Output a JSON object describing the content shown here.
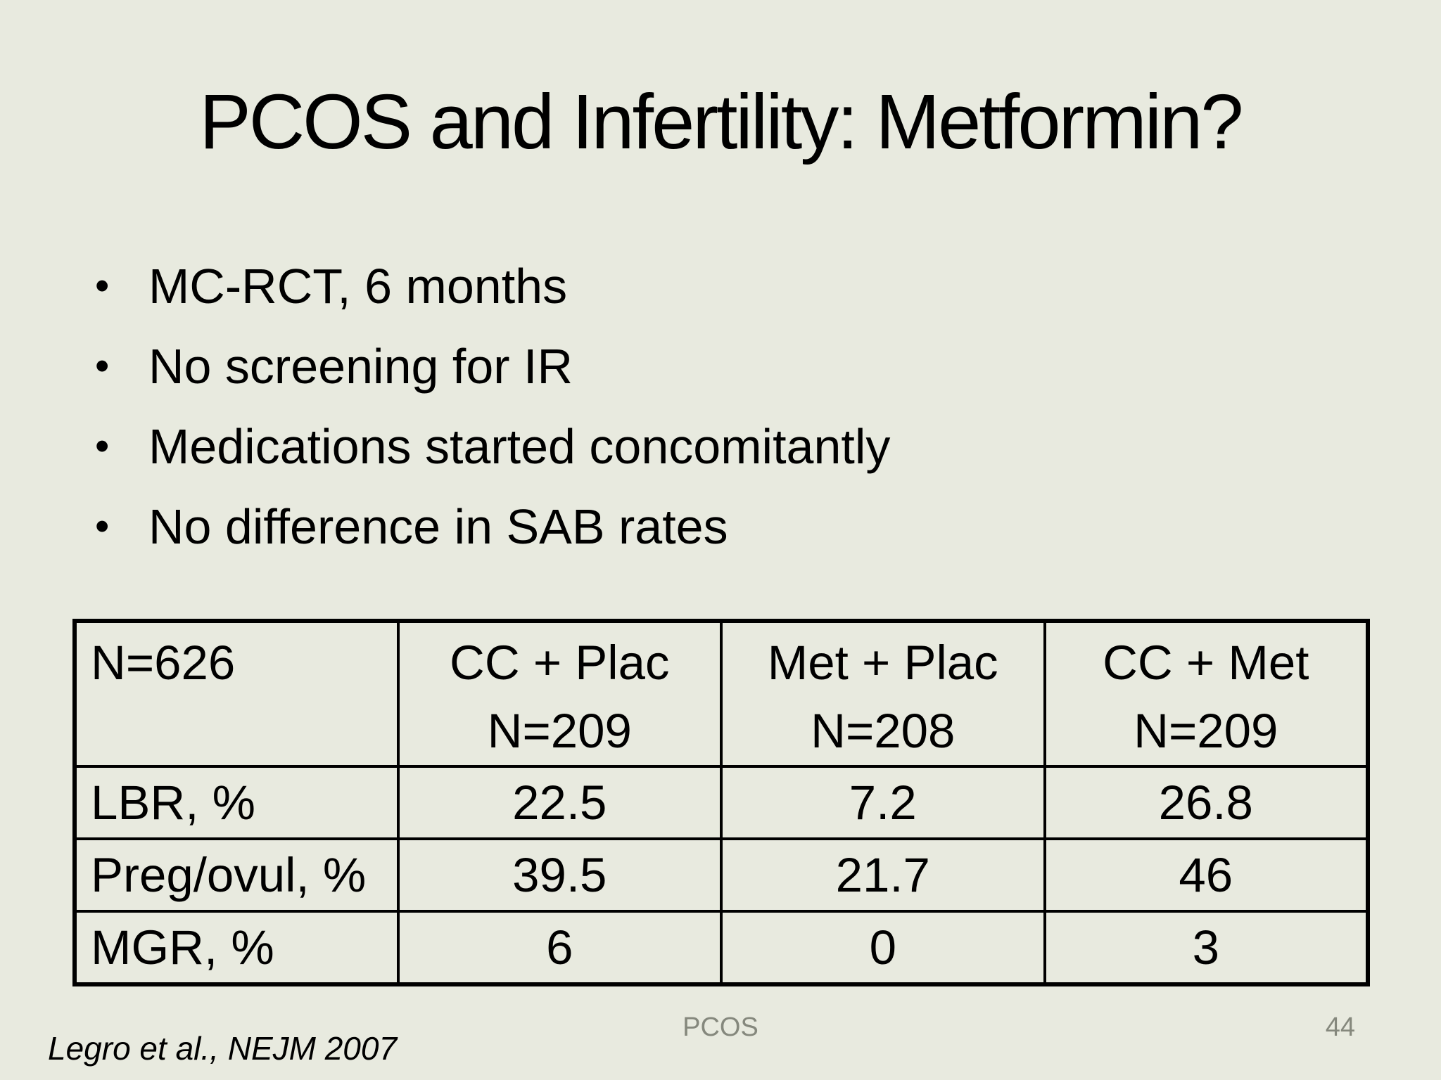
{
  "slide": {
    "title": "PCOS and Infertility: Metformin?",
    "bullet_char": "•",
    "bullets": [
      "MC-RCT, 6 months",
      "No screening for IR",
      "Medications started concomitantly",
      "No difference in SAB rates"
    ],
    "table": {
      "corner_header": "N=626",
      "columns": [
        {
          "line1": "CC + Plac",
          "line2": "N=209"
        },
        {
          "line1": "Met + Plac",
          "line2": "N=208"
        },
        {
          "line1": "CC + Met",
          "line2": "N=209"
        }
      ],
      "rows": [
        {
          "label": "LBR, %",
          "values": [
            "22.5",
            "7.2",
            "26.8"
          ]
        },
        {
          "label": "Preg/ovul, %",
          "values": [
            "39.5",
            "21.7",
            "46"
          ]
        },
        {
          "label": "MGR, %",
          "values": [
            "6",
            "0",
            "3"
          ]
        }
      ]
    },
    "footer": {
      "citation": "Legro et al., NEJM 2007",
      "footer_text": "PCOS",
      "slide_number": "44"
    },
    "colors": {
      "background": "#e8eadf",
      "text": "#000000",
      "muted_gray": "#85887d",
      "table_border": "#000000"
    }
  }
}
